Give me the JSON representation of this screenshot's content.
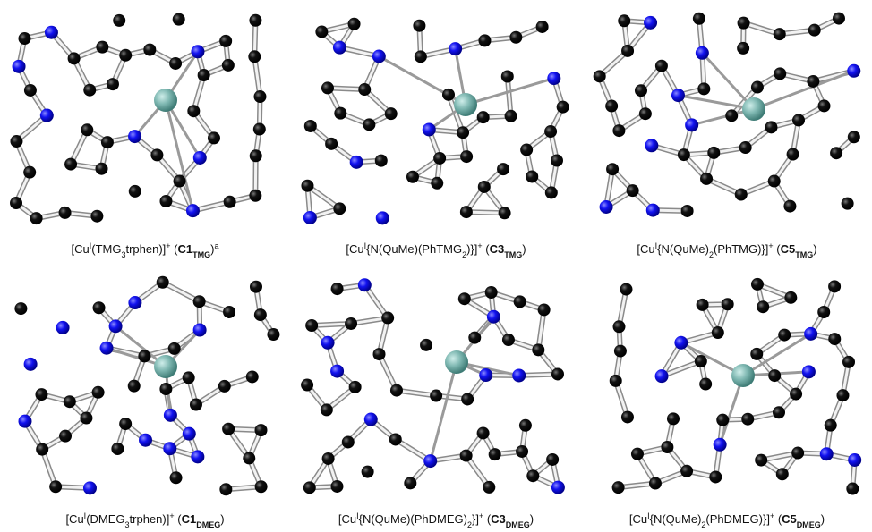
{
  "panels": [
    {
      "caption": [
        "[Cu",
        "I",
        "(TMG",
        "3",
        "trphen)]",
        "+",
        " (",
        "C1",
        "TMG",
        ")",
        "a"
      ]
    },
    {
      "caption": [
        "[Cu",
        "I",
        "{N(QuMe)(PhTMG",
        "2",
        ")}]",
        "+",
        " (",
        "C3",
        "TMG",
        ")"
      ]
    },
    {
      "caption": [
        "[Cu",
        "I",
        "{N(QuMe)",
        "2",
        "(PhTMG)}]",
        "+",
        " (",
        "C5",
        "TMG",
        ")"
      ]
    },
    {
      "caption": [
        "[Cu",
        "I",
        "(DMEG",
        "3",
        "trphen)]",
        "+",
        " (",
        "C1",
        "DMEG",
        ")"
      ]
    },
    {
      "caption": [
        "[Cu",
        "I",
        "{N(QuMe)(PhDMEG)",
        "2",
        "}]",
        "+",
        " (",
        "C3",
        "DMEG",
        ")"
      ]
    },
    {
      "caption": [
        "[Cu",
        "I",
        "{N(QuMe)",
        "2",
        "(PhDMEG)}]",
        "+",
        " (",
        "C5",
        "DMEG",
        ")"
      ]
    }
  ]
}
